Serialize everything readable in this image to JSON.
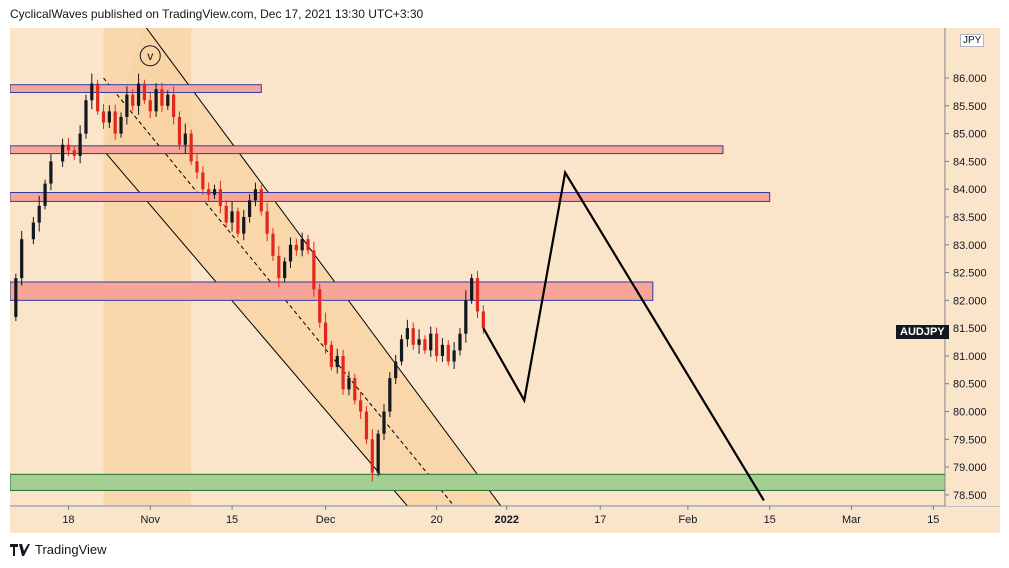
{
  "header": {
    "publish_line": "CyclicalWaves published on TradingView.com, Dec 17, 2021 13:30 UTC+3:30"
  },
  "symbol_label": "AUDJPY",
  "currency_label": "JPY",
  "footer": {
    "brand": "TradingView"
  },
  "colors": {
    "background": "#fae5cb",
    "zone_red": "#f7a596",
    "zone_green": "#a3cf93",
    "channel_fill": "#f9d3a3",
    "up_candle": "#131722",
    "down_candle": "#e0281f",
    "projection": "#000000"
  },
  "chart_data": {
    "type": "candlestick",
    "title": "",
    "symbol": "AUDJPY",
    "y_axis": {
      "ticks": [
        "86.000",
        "85.500",
        "85.000",
        "84.500",
        "84.000",
        "83.500",
        "83.000",
        "82.500",
        "82.000",
        "81.500",
        "81.000",
        "80.500",
        "80.000",
        "79.500",
        "79.000",
        "78.500"
      ],
      "range": [
        78.3,
        86.9
      ]
    },
    "x_axis": {
      "ticks": [
        {
          "label": "18",
          "date": "2021-10-18"
        },
        {
          "label": "Nov",
          "date": "2021-11-01"
        },
        {
          "label": "15",
          "date": "2021-11-15"
        },
        {
          "label": "Dec",
          "date": "2021-12-01"
        },
        {
          "label": "20",
          "date": "2021-12-20"
        },
        {
          "label": "2022",
          "date": "2022-01-01"
        },
        {
          "label": "17",
          "date": "2022-01-17"
        },
        {
          "label": "Feb",
          "date": "2022-02-01"
        },
        {
          "label": "15",
          "date": "2022-02-15"
        },
        {
          "label": "Mar",
          "date": "2022-03-01"
        },
        {
          "label": "15",
          "date": "2022-03-15"
        }
      ],
      "range": [
        "2021-10-08",
        "2022-03-17"
      ]
    },
    "price_path": [
      {
        "date": "2021-10-08",
        "value": 81.7
      },
      {
        "date": "2021-10-09",
        "value": 82.4
      },
      {
        "date": "2021-10-10",
        "value": 83.1
      },
      {
        "date": "2021-10-12",
        "value": 83.4
      },
      {
        "date": "2021-10-13",
        "value": 83.7
      },
      {
        "date": "2021-10-14",
        "value": 84.1
      },
      {
        "date": "2021-10-15",
        "value": 84.5
      },
      {
        "date": "2021-10-17",
        "value": 84.8
      },
      {
        "date": "2021-10-18",
        "value": 84.7
      },
      {
        "date": "2021-10-19",
        "value": 84.6
      },
      {
        "date": "2021-10-20",
        "value": 85.0
      },
      {
        "date": "2021-10-21",
        "value": 85.6
      },
      {
        "date": "2021-10-22",
        "value": 85.9
      },
      {
        "date": "2021-10-23",
        "value": 85.4
      },
      {
        "date": "2021-10-24",
        "value": 85.2
      },
      {
        "date": "2021-10-25",
        "value": 85.4
      },
      {
        "date": "2021-10-26",
        "value": 85.0
      },
      {
        "date": "2021-10-27",
        "value": 85.3
      },
      {
        "date": "2021-10-28",
        "value": 85.7
      },
      {
        "date": "2021-10-29",
        "value": 85.5
      },
      {
        "date": "2021-10-30",
        "value": 85.9
      },
      {
        "date": "2021-10-31",
        "value": 85.6
      },
      {
        "date": "2021-11-01",
        "value": 85.4
      },
      {
        "date": "2021-11-02",
        "value": 85.8
      },
      {
        "date": "2021-11-03",
        "value": 85.5
      },
      {
        "date": "2021-11-04",
        "value": 85.7
      },
      {
        "date": "2021-11-05",
        "value": 85.3
      },
      {
        "date": "2021-11-06",
        "value": 84.8
      },
      {
        "date": "2021-11-07",
        "value": 85.0
      },
      {
        "date": "2021-11-08",
        "value": 84.5
      },
      {
        "date": "2021-11-09",
        "value": 84.3
      },
      {
        "date": "2021-11-10",
        "value": 84.0
      },
      {
        "date": "2021-11-11",
        "value": 83.9
      },
      {
        "date": "2021-11-12",
        "value": 84.0
      },
      {
        "date": "2021-11-13",
        "value": 83.7
      },
      {
        "date": "2021-11-14",
        "value": 83.4
      },
      {
        "date": "2021-11-15",
        "value": 83.6
      },
      {
        "date": "2021-11-16",
        "value": 83.2
      },
      {
        "date": "2021-11-17",
        "value": 83.5
      },
      {
        "date": "2021-11-18",
        "value": 83.8
      },
      {
        "date": "2021-11-19",
        "value": 84.0
      },
      {
        "date": "2021-11-20",
        "value": 83.6
      },
      {
        "date": "2021-11-21",
        "value": 83.2
      },
      {
        "date": "2021-11-22",
        "value": 82.8
      },
      {
        "date": "2021-11-23",
        "value": 82.4
      },
      {
        "date": "2021-11-24",
        "value": 82.7
      },
      {
        "date": "2021-11-25",
        "value": 83.0
      },
      {
        "date": "2021-11-26",
        "value": 82.9
      },
      {
        "date": "2021-11-27",
        "value": 83.1
      },
      {
        "date": "2021-11-28",
        "value": 82.9
      },
      {
        "date": "2021-11-29",
        "value": 82.2
      },
      {
        "date": "2021-11-30",
        "value": 81.6
      },
      {
        "date": "2021-12-01",
        "value": 81.2
      },
      {
        "date": "2021-12-02",
        "value": 80.8
      },
      {
        "date": "2021-12-03",
        "value": 81.0
      },
      {
        "date": "2021-12-04",
        "value": 80.4
      },
      {
        "date": "2021-12-05",
        "value": 80.6
      },
      {
        "date": "2021-12-06",
        "value": 80.2
      },
      {
        "date": "2021-12-07",
        "value": 80.0
      },
      {
        "date": "2021-12-08",
        "value": 79.5
      },
      {
        "date": "2021-12-09",
        "value": 78.9
      },
      {
        "date": "2021-12-10",
        "value": 79.6
      },
      {
        "date": "2021-12-11",
        "value": 80.0
      },
      {
        "date": "2021-12-12",
        "value": 80.6
      },
      {
        "date": "2021-12-13",
        "value": 80.9
      },
      {
        "date": "2021-12-14",
        "value": 81.3
      },
      {
        "date": "2021-12-15",
        "value": 81.5
      },
      {
        "date": "2021-12-16",
        "value": 81.2
      },
      {
        "date": "2021-12-17",
        "value": 81.3
      },
      {
        "date": "2021-12-18",
        "value": 81.1
      },
      {
        "date": "2021-12-19",
        "value": 81.4
      },
      {
        "date": "2021-12-20",
        "value": 81.0
      },
      {
        "date": "2021-12-21",
        "value": 81.2
      },
      {
        "date": "2021-12-22",
        "value": 80.9
      },
      {
        "date": "2021-12-23",
        "value": 81.1
      },
      {
        "date": "2021-12-24",
        "value": 81.4
      },
      {
        "date": "2021-12-25",
        "value": 82.0
      },
      {
        "date": "2021-12-26",
        "value": 82.4
      },
      {
        "date": "2021-12-27",
        "value": 81.8
      },
      {
        "date": "2021-12-28",
        "value": 81.5
      }
    ],
    "zones": [
      {
        "kind": "resistance",
        "color": "red",
        "from": "2021-10-08",
        "to": "2021-11-20",
        "high": 85.88,
        "low": 85.74
      },
      {
        "kind": "resistance",
        "color": "red",
        "from": "2021-10-08",
        "to": "2022-02-07",
        "high": 84.78,
        "low": 84.64
      },
      {
        "kind": "resistance",
        "color": "red",
        "from": "2021-10-08",
        "to": "2022-02-15",
        "high": 83.94,
        "low": 83.78
      },
      {
        "kind": "support",
        "color": "red",
        "from": "2021-10-08",
        "to": "2022-01-26",
        "high": 82.33,
        "low": 82.0
      },
      {
        "kind": "support",
        "color": "green",
        "from": "2021-10-08",
        "to": "2022-03-17",
        "high": 78.87,
        "low": 78.58
      }
    ],
    "channel": {
      "upper": [
        {
          "date": "2021-10-31",
          "value": 86.95
        },
        {
          "date": "2021-12-31",
          "value": 78.3
        }
      ],
      "lower": [
        {
          "date": "2021-10-24",
          "value": 84.7
        },
        {
          "date": "2021-12-15",
          "value": 78.3
        }
      ],
      "midline": [
        {
          "date": "2021-10-24",
          "value": 86.0
        },
        {
          "date": "2021-12-23",
          "value": 78.3
        }
      ]
    },
    "highlight_band": {
      "from": "2021-10-24",
      "to": "2021-11-08"
    },
    "wave_label": {
      "text": "v",
      "date": "2021-11-01",
      "value": 86.4
    },
    "projection": [
      {
        "date": "2021-12-28",
        "value": 81.5
      },
      {
        "date": "2022-01-04",
        "value": 80.2
      },
      {
        "date": "2022-01-11",
        "value": 84.3
      },
      {
        "date": "2022-02-14",
        "value": 78.4
      }
    ]
  }
}
